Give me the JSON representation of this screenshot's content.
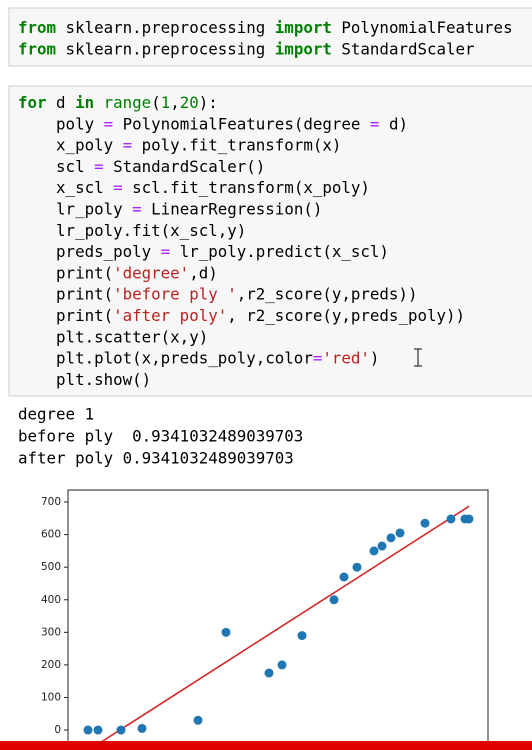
{
  "cells": [
    {
      "lines": [
        "from sklearn.preprocessing import PolynomialFeatures",
        "from sklearn.preprocessing import StandardScaler"
      ]
    },
    {
      "lines": [
        "for d in range(1,20):",
        "    poly = PolynomialFeatures(degree = d)",
        "    x_poly = poly.fit_transform(x)",
        "    scl = StandardScaler()",
        "    x_scl = scl.fit_transform(x_poly)",
        "    lr_poly = LinearRegression()",
        "    lr_poly.fit(x_scl,y)",
        "    preds_poly = lr_poly.predict(x_scl)",
        "    print('degree',d)",
        "    print('before ply ',r2_score(y,preds))",
        "    print('after poly', r2_score(y,preds_poly))",
        "    plt.scatter(x,y)",
        "    plt.plot(x,preds_poly,color='red')",
        "    plt.show()"
      ]
    }
  ],
  "output": [
    "degree 1",
    "before ply  0.9341032489039703",
    "after poly 0.9341032489039703"
  ],
  "chart_data": {
    "type": "scatter",
    "x": [
      1.0,
      1.5,
      2.65,
      3.7,
      6.5,
      7.9,
      10.05,
      10.7,
      11.7,
      13.3,
      13.8,
      14.45,
      15.3,
      15.7,
      16.15,
      16.6,
      17.85,
      19.15,
      19.85,
      20.05
    ],
    "values": [
      0,
      0,
      0,
      5,
      30,
      300,
      175,
      200,
      290,
      400,
      470,
      500,
      550,
      565,
      590,
      605,
      635,
      648,
      648,
      648
    ],
    "color": "#1f77b4",
    "line": {
      "x": [
        1.35,
        20.05
      ],
      "values": [
        -49,
        687
      ],
      "color": "#d62728"
    },
    "xlim": [
      0,
      21
    ],
    "ylim": [
      -49,
      737
    ],
    "yticks": [
      0,
      100,
      200,
      300,
      400,
      500,
      600,
      700
    ]
  }
}
